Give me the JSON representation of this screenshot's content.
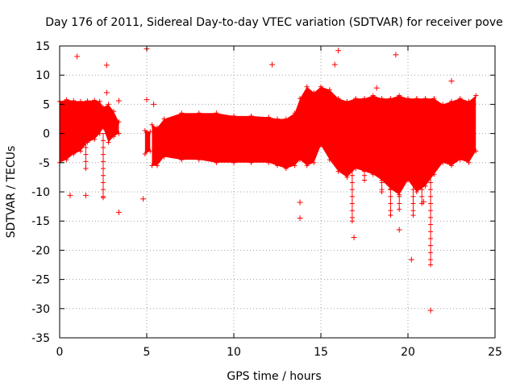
{
  "chart_data": {
    "type": "scatter",
    "title": "Day 176 of 2011, Sidereal Day-to-day VTEC variation (SDTVAR) for receiver pove",
    "xlabel": "GPS time / hours",
    "ylabel": "SDTVAR / TECUs",
    "xlim": [
      0,
      25
    ],
    "ylim": [
      -35,
      15
    ],
    "xticks": [
      0,
      5,
      10,
      15,
      20,
      25
    ],
    "yticks": [
      15,
      10,
      5,
      0,
      -5,
      -10,
      -15,
      -20,
      -25,
      -30,
      -35
    ],
    "grid": true,
    "marker": "+",
    "series": [
      {
        "name": "SDTVAR",
        "color": "#ff0000",
        "dense_band": {
          "note": "Approximate upper and lower envelope of the dense point cloud",
          "segments": [
            {
              "x": [
                0.0,
                0.4,
                0.8,
                1.2,
                1.6,
                2.0,
                2.3,
                2.5,
                2.8,
                3.1,
                3.4
              ],
              "upper": [
                5.5,
                5.8,
                5.6,
                5.5,
                5.6,
                5.7,
                5.5,
                4.5,
                5.0,
                3.8,
                2.0
              ],
              "lower": [
                -5.0,
                -4.5,
                -3.5,
                -3.0,
                -1.5,
                -1.0,
                0.0,
                1.0,
                -1.5,
                -0.5,
                0.0
              ]
            },
            {
              "x": [
                4.9,
                5.2
              ],
              "upper": [
                0.5,
                0.3
              ],
              "lower": [
                -3.5,
                -3.0
              ]
            },
            {
              "x": [
                5.3,
                5.6,
                6.0,
                7.0,
                8.0,
                9.0,
                10.0,
                11.0,
                12.0,
                12.5,
                13.0,
                13.5,
                13.8,
                14.2,
                14.6,
                15.0,
                15.5,
                16.0,
                16.5,
                17.0,
                17.5,
                18.0,
                18.5,
                19.0,
                19.5,
                20.0,
                20.5,
                21.0,
                21.5,
                22.0,
                22.5,
                23.0,
                23.5,
                23.9
              ],
              "upper": [
                1.5,
                1.0,
                2.5,
                3.5,
                3.5,
                3.5,
                3.0,
                3.0,
                2.8,
                2.5,
                2.5,
                3.5,
                6.0,
                8.0,
                7.0,
                8.0,
                7.5,
                6.0,
                5.5,
                6.0,
                6.0,
                6.5,
                6.0,
                6.0,
                6.5,
                6.0,
                6.0,
                6.0,
                6.0,
                5.0,
                5.5,
                6.0,
                5.5,
                6.5
              ],
              "lower": [
                -5.5,
                -5.5,
                -4.0,
                -4.5,
                -4.5,
                -5.0,
                -5.0,
                -5.0,
                -5.0,
                -5.5,
                -6.0,
                -5.5,
                -4.5,
                -5.5,
                -5.0,
                -2.0,
                -4.5,
                -6.5,
                -7.5,
                -6.0,
                -6.5,
                -7.0,
                -8.0,
                -9.5,
                -10.5,
                -8.0,
                -10.0,
                -9.0,
                -7.0,
                -5.0,
                -5.5,
                -4.5,
                -5.0,
                -3.0
              ]
            }
          ]
        },
        "spikes": [
          {
            "x": 2.5,
            "low": -11.0
          },
          {
            "x": 1.5,
            "low": -6.0
          },
          {
            "x": 16.8,
            "low": -15.0
          },
          {
            "x": 19.0,
            "low": -14.0
          },
          {
            "x": 19.5,
            "low": -13.0
          },
          {
            "x": 20.3,
            "low": -14.0
          },
          {
            "x": 20.8,
            "low": -12.0
          },
          {
            "x": 21.3,
            "low": -22.5
          },
          {
            "x": 17.5,
            "low": -8.0
          },
          {
            "x": 18.5,
            "low": -10.0
          }
        ],
        "outliers": [
          {
            "x": 1.0,
            "y": 13.2
          },
          {
            "x": 2.7,
            "y": 11.7
          },
          {
            "x": 2.7,
            "y": 7.0
          },
          {
            "x": 3.4,
            "y": 5.6
          },
          {
            "x": 5.0,
            "y": 14.5
          },
          {
            "x": 5.0,
            "y": 5.8
          },
          {
            "x": 5.4,
            "y": 5.0
          },
          {
            "x": 12.2,
            "y": 11.8
          },
          {
            "x": 15.8,
            "y": 11.8
          },
          {
            "x": 16.0,
            "y": 14.2
          },
          {
            "x": 18.2,
            "y": 7.8
          },
          {
            "x": 19.3,
            "y": 13.5
          },
          {
            "x": 22.5,
            "y": 9.0
          },
          {
            "x": 0.6,
            "y": -10.6
          },
          {
            "x": 1.5,
            "y": -10.6
          },
          {
            "x": 3.4,
            "y": -13.5
          },
          {
            "x": 4.8,
            "y": -11.2
          },
          {
            "x": 13.8,
            "y": -11.8
          },
          {
            "x": 13.8,
            "y": -14.5
          },
          {
            "x": 16.9,
            "y": -17.8
          },
          {
            "x": 19.5,
            "y": -16.5
          },
          {
            "x": 20.2,
            "y": -21.6
          },
          {
            "x": 21.3,
            "y": -30.3
          },
          {
            "x": 20.9,
            "y": -11.7
          }
        ]
      }
    ]
  }
}
